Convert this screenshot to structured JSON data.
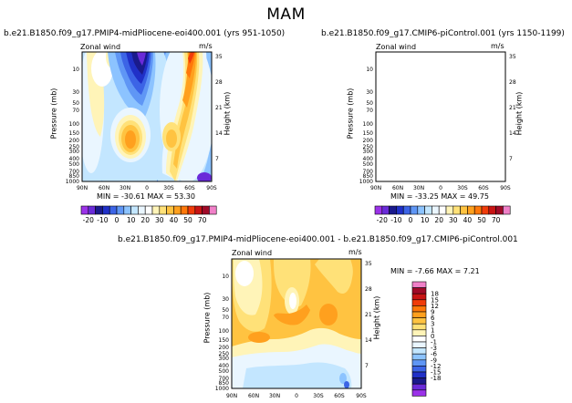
{
  "page_title": "MAM",
  "colors": {
    "c1": "#9b32e8",
    "c2": "#6a2bd9",
    "c3": "#1a1a8c",
    "c4": "#2030c8",
    "c5": "#3c64e6",
    "c6": "#5f96f5",
    "c7": "#8cc3ff",
    "c8": "#c3e6ff",
    "c9": "#eaf6ff",
    "c10": "#ffffff",
    "c11": "#fff4b8",
    "c12": "#ffe178",
    "c13": "#ffc341",
    "c14": "#ffa01e",
    "c15": "#ff780a",
    "c16": "#f03c0a",
    "c17": "#c81414",
    "c18": "#a00a28",
    "c19": "#f080c8"
  },
  "chart_data": [
    {
      "type": "heatmap",
      "title": "b.e21.B1850.f09_g17.PMIP4-midPliocene-eoi400.001  (yrs 951-1050)",
      "field_label": "Zonal wind",
      "units": "m/s",
      "xlabel": "",
      "ylabel": "Pressure (mb)",
      "ylabel_right": "Height (km)",
      "x_ticks": [
        "90N",
        "60N",
        "30N",
        "0",
        "30S",
        "60S",
        "90S"
      ],
      "y_ticks": [
        "10",
        "30",
        "50",
        "70",
        "100",
        "150",
        "200",
        "250",
        "300",
        "400",
        "500",
        "700",
        "850",
        "1000"
      ],
      "y_ticks_right": [
        "35",
        "28",
        "21",
        "14",
        "7"
      ],
      "min": -30.61,
      "max": 53.3,
      "min_label": "MIN = -30.61   MAX =  53.30"
    },
    {
      "type": "heatmap",
      "title": "b.e21.B1850.f09_g17.CMIP6-piControl.001  (yrs 1150-1199)",
      "field_label": "Zonal wind",
      "units": "m/s",
      "xlabel": "",
      "ylabel": "Pressure (mb)",
      "ylabel_right": "Height (km)",
      "x_ticks": [
        "90N",
        "60N",
        "30N",
        "0",
        "30S",
        "60S",
        "90S"
      ],
      "y_ticks": [
        "10",
        "30",
        "50",
        "70",
        "100",
        "150",
        "200",
        "250",
        "300",
        "400",
        "500",
        "700",
        "850",
        "1000"
      ],
      "y_ticks_right": [
        "35",
        "28",
        "21",
        "14",
        "7"
      ],
      "min": -33.25,
      "max": 49.75,
      "min_label": "MIN = -33.25   MAX =  49.75"
    },
    {
      "type": "heatmap",
      "title": "b.e21.B1850.f09_g17.PMIP4-midPliocene-eoi400.001  -  b.e21.B1850.f09_g17.CMIP6-piControl.001",
      "field_label": "Zonal wind",
      "units": "m/s",
      "xlabel": "",
      "ylabel": "Pressure (mb)",
      "ylabel_right": "Height (km)",
      "x_ticks": [
        "90N",
        "60N",
        "30N",
        "0",
        "30S",
        "60S",
        "90S"
      ],
      "y_ticks": [
        "10",
        "30",
        "50",
        "70",
        "100",
        "150",
        "200",
        "250",
        "300",
        "400",
        "500",
        "700",
        "850",
        "1000"
      ],
      "y_ticks_right": [
        "35",
        "28",
        "21",
        "14",
        "7"
      ],
      "min": -7.66,
      "max": 7.21,
      "min_label": "MIN =   -7.66    MAX =    7.21"
    }
  ],
  "colorbar_top": {
    "labels": [
      "-20",
      "-10",
      "0",
      "10",
      "20",
      "30",
      "40",
      "50",
      "70"
    ]
  },
  "colorbar_diff": {
    "labels": [
      "18",
      "15",
      "12",
      "9",
      "6",
      "3",
      "1",
      "0",
      "-1",
      "-3",
      "-6",
      "-9",
      "-12",
      "-15",
      "-18"
    ]
  }
}
